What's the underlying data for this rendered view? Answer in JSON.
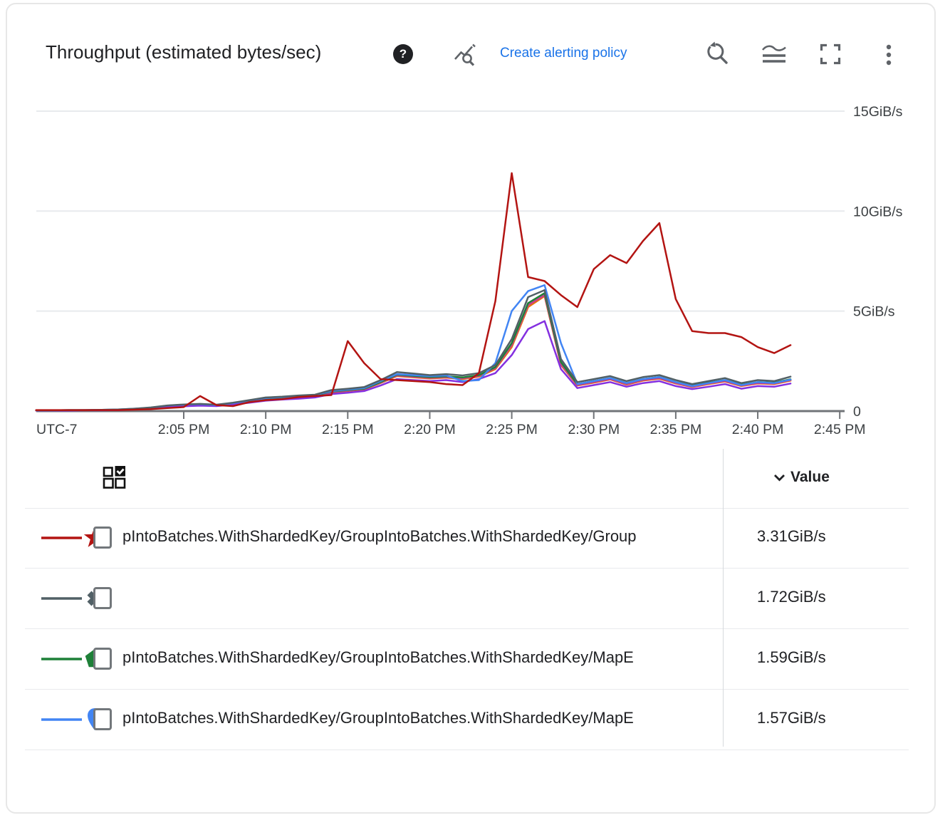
{
  "header": {
    "title": "Throughput (estimated bytes/sec)",
    "help_glyph": "?",
    "create_alerting_policy_label": "Create alerting policy"
  },
  "toolbar_icons": [
    "metrics-explorer-icon",
    "zoom-reset-icon",
    "overlay-mode-icon",
    "fullscreen-icon",
    "more-options-icon"
  ],
  "colors": {
    "link_blue": "#1a73e8",
    "axis_text": "#3c4043",
    "grid_line": "#e8eaed",
    "axis_line": "#717478"
  },
  "chart_data": {
    "type": "line",
    "title": "Throughput (estimated bytes/sec)",
    "unit": "GiB/s",
    "grid": true,
    "legend_position": "table-below",
    "x_axis": {
      "timezone_label": "UTC-7",
      "tick_labels": [
        "2:05 PM",
        "2:10 PM",
        "2:15 PM",
        "2:20 PM",
        "2:25 PM",
        "2:30 PM",
        "2:35 PM",
        "2:40 PM",
        "2:45 PM"
      ],
      "tick_minutes": [
        5,
        10,
        15,
        20,
        25,
        30,
        35,
        40,
        45
      ]
    },
    "y_axis": {
      "range": [
        0,
        16
      ],
      "ticks": [
        {
          "value": 15,
          "label": "15GiB/s"
        },
        {
          "value": 10,
          "label": "10GiB/s"
        },
        {
          "value": 5,
          "label": "5GiB/s"
        },
        {
          "value": 0,
          "label": "0"
        }
      ]
    },
    "sample_minutes_after_2pm": [
      -4,
      -3,
      -2,
      -1,
      0,
      1,
      2,
      3,
      4,
      5,
      6,
      7,
      8,
      9,
      10,
      11,
      12,
      13,
      14,
      15,
      16,
      17,
      18,
      19,
      20,
      21,
      22,
      23,
      24,
      25,
      26,
      27,
      28,
      29,
      30,
      31,
      32,
      33,
      34,
      35,
      36,
      37,
      38,
      39,
      40,
      41,
      42
    ],
    "series": [
      {
        "id": "orange",
        "color": "#e8710a",
        "marker": "none",
        "values": [
          0.03,
          0.03,
          0.04,
          0.04,
          0.05,
          0.06,
          0.1,
          0.14,
          0.24,
          0.28,
          0.31,
          0.28,
          0.37,
          0.47,
          0.58,
          0.64,
          0.69,
          0.74,
          0.92,
          1.0,
          1.08,
          1.4,
          1.75,
          1.69,
          1.63,
          1.67,
          1.6,
          1.72,
          2.1,
          3.2,
          5.2,
          5.75,
          2.3,
          1.28,
          1.42,
          1.58,
          1.32,
          1.52,
          1.62,
          1.38,
          1.2,
          1.35,
          1.48,
          1.25,
          1.38,
          1.35,
          1.52
        ]
      },
      {
        "id": "magenta",
        "color": "#c63d8f",
        "marker": "none",
        "values": [
          0.03,
          0.03,
          0.04,
          0.05,
          0.05,
          0.07,
          0.1,
          0.15,
          0.25,
          0.29,
          0.32,
          0.29,
          0.38,
          0.48,
          0.6,
          0.66,
          0.71,
          0.76,
          0.95,
          1.02,
          1.1,
          1.42,
          1.78,
          1.72,
          1.66,
          1.7,
          1.64,
          1.76,
          2.15,
          3.3,
          5.3,
          5.8,
          2.35,
          1.3,
          1.45,
          1.6,
          1.35,
          1.55,
          1.65,
          1.4,
          1.22,
          1.38,
          1.5,
          1.28,
          1.4,
          1.38,
          1.55
        ]
      },
      {
        "id": "green",
        "color": "#1e8038",
        "marker": "pentagon",
        "values": [
          0.04,
          0.04,
          0.05,
          0.05,
          0.06,
          0.07,
          0.11,
          0.16,
          0.26,
          0.3,
          0.33,
          0.3,
          0.4,
          0.5,
          0.62,
          0.68,
          0.73,
          0.78,
          0.98,
          1.05,
          1.12,
          1.45,
          1.82,
          1.76,
          1.7,
          1.74,
          1.68,
          1.8,
          2.2,
          3.4,
          5.4,
          5.9,
          2.45,
          1.35,
          1.5,
          1.65,
          1.4,
          1.6,
          1.7,
          1.45,
          1.28,
          1.42,
          1.55,
          1.32,
          1.45,
          1.42,
          1.59
        ]
      },
      {
        "id": "purple",
        "color": "#8430e0",
        "marker": "none",
        "values": [
          0.03,
          0.03,
          0.03,
          0.04,
          0.04,
          0.05,
          0.08,
          0.12,
          0.2,
          0.24,
          0.27,
          0.25,
          0.33,
          0.42,
          0.52,
          0.58,
          0.62,
          0.68,
          0.85,
          0.92,
          1.0,
          1.28,
          1.6,
          1.55,
          1.5,
          1.55,
          1.45,
          1.6,
          1.9,
          2.8,
          4.1,
          4.5,
          2.1,
          1.15,
          1.3,
          1.45,
          1.22,
          1.4,
          1.5,
          1.25,
          1.1,
          1.22,
          1.35,
          1.12,
          1.25,
          1.22,
          1.38
        ]
      },
      {
        "id": "blue",
        "color": "#4285f4",
        "marker": "drop",
        "values": [
          0.04,
          0.04,
          0.05,
          0.05,
          0.06,
          0.08,
          0.12,
          0.17,
          0.27,
          0.32,
          0.35,
          0.3,
          0.4,
          0.52,
          0.65,
          0.7,
          0.75,
          0.8,
          1.0,
          1.08,
          1.15,
          1.5,
          1.85,
          1.8,
          1.75,
          1.78,
          1.5,
          1.55,
          2.4,
          5.0,
          6.0,
          6.3,
          3.4,
          1.35,
          1.5,
          1.65,
          1.4,
          1.6,
          1.7,
          1.45,
          1.25,
          1.4,
          1.55,
          1.3,
          1.45,
          1.4,
          1.57
        ]
      },
      {
        "id": "gray",
        "color": "#516066",
        "marker": "x",
        "values": [
          0.04,
          0.04,
          0.05,
          0.05,
          0.06,
          0.08,
          0.12,
          0.18,
          0.28,
          0.33,
          0.36,
          0.32,
          0.42,
          0.55,
          0.68,
          0.72,
          0.78,
          0.82,
          1.05,
          1.12,
          1.2,
          1.55,
          1.95,
          1.88,
          1.8,
          1.85,
          1.78,
          1.9,
          2.3,
          3.6,
          5.7,
          6.05,
          2.6,
          1.45,
          1.6,
          1.75,
          1.5,
          1.7,
          1.8,
          1.55,
          1.35,
          1.5,
          1.65,
          1.4,
          1.55,
          1.5,
          1.72
        ]
      },
      {
        "id": "red",
        "color": "#b31412",
        "marker": "star",
        "values": [
          0.05,
          0.05,
          0.05,
          0.05,
          0.05,
          0.05,
          0.07,
          0.1,
          0.15,
          0.2,
          0.75,
          0.3,
          0.25,
          0.45,
          0.55,
          0.6,
          0.7,
          0.75,
          0.8,
          3.5,
          2.4,
          1.6,
          1.55,
          1.5,
          1.45,
          1.35,
          1.3,
          1.9,
          5.5,
          11.9,
          6.7,
          6.5,
          5.8,
          5.2,
          7.1,
          7.8,
          7.4,
          8.5,
          9.4,
          5.6,
          4.0,
          3.9,
          3.9,
          3.7,
          3.2,
          2.9,
          3.3
        ]
      }
    ]
  },
  "table": {
    "value_header": "Value",
    "rows": [
      {
        "series_id": "red",
        "marker": "star",
        "color": "#b31412",
        "label": "pIntoBatches.WithShardedKey/GroupIntoBatches.WithShardedKey/Group",
        "value": "3.31GiB/s",
        "checked": false
      },
      {
        "series_id": "gray",
        "marker": "x",
        "color": "#516066",
        "label": "",
        "value": "1.72GiB/s",
        "checked": false
      },
      {
        "series_id": "green",
        "marker": "pentagon",
        "color": "#1e8038",
        "label": "pIntoBatches.WithShardedKey/GroupIntoBatches.WithShardedKey/MapE",
        "value": "1.59GiB/s",
        "checked": false
      },
      {
        "series_id": "blue",
        "marker": "drop",
        "color": "#4285f4",
        "label": "pIntoBatches.WithShardedKey/GroupIntoBatches.WithShardedKey/MapE",
        "value": "1.57GiB/s",
        "checked": false
      }
    ]
  }
}
